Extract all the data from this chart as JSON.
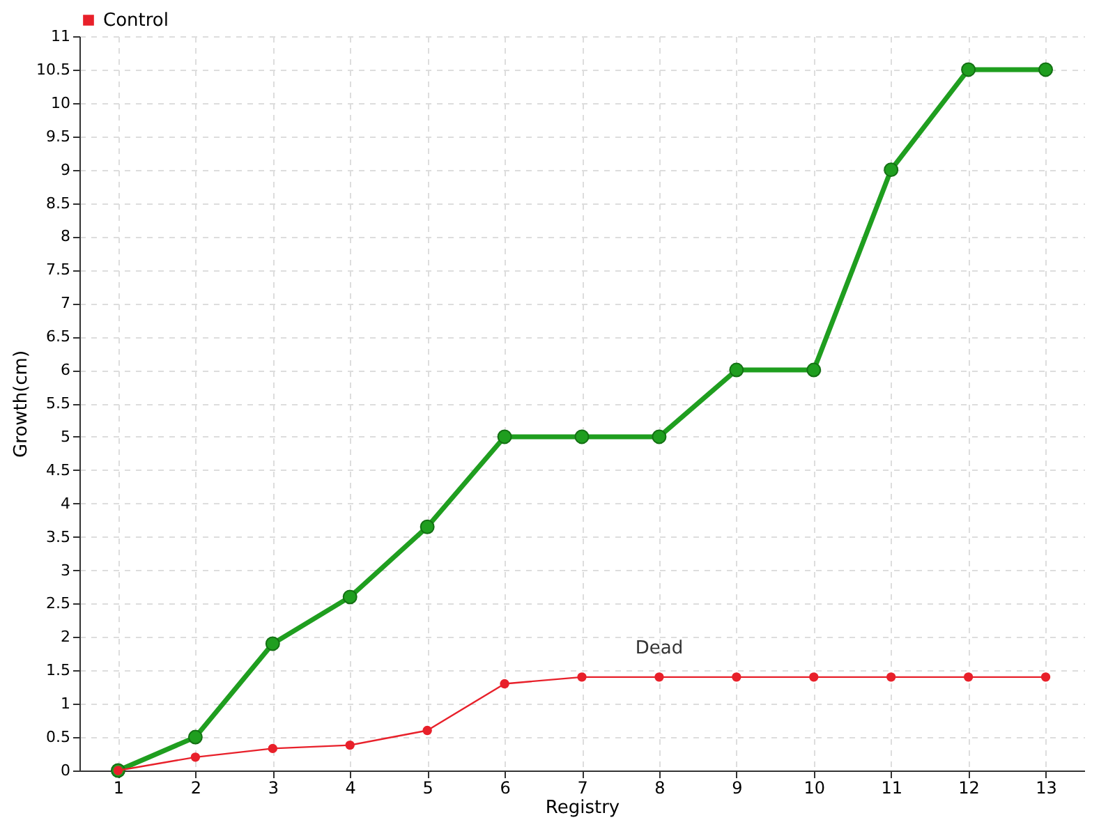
{
  "chart_data": {
    "type": "line",
    "xlabel": "Registry",
    "ylabel": "Growth(cm)",
    "x": [
      1,
      2,
      3,
      4,
      5,
      6,
      7,
      8,
      9,
      10,
      11,
      12,
      13
    ],
    "xlim": [
      0.5,
      13.5
    ],
    "xticks": [
      1,
      2,
      3,
      4,
      5,
      6,
      7,
      8,
      9,
      10,
      11,
      12,
      13
    ],
    "ylim": [
      0,
      11
    ],
    "yticks": [
      0,
      0.5,
      1,
      1.5,
      2,
      2.5,
      3,
      3.5,
      4,
      4.5,
      5,
      5.5,
      6,
      6.5,
      7,
      7.5,
      8,
      8.5,
      9,
      9.5,
      10,
      10.5,
      11
    ],
    "series": [
      {
        "color": "#1f9e1f",
        "values": [
          0,
          0.5,
          1.9,
          2.6,
          3.65,
          5,
          5,
          5,
          6,
          6,
          9,
          10.5,
          10.5
        ]
      },
      {
        "name": "Control",
        "color": "#e8202a",
        "values": [
          0,
          0.2,
          0.33,
          0.38,
          0.6,
          1.3,
          1.4,
          1.4,
          1.4,
          1.4,
          1.4,
          1.4,
          1.4
        ]
      }
    ],
    "annotations": [
      {
        "text": "Dead",
        "x": 8,
        "y": 1.4
      }
    ],
    "grid": true,
    "legend": "top left",
    "marker": "circle",
    "line_style": "solid"
  }
}
